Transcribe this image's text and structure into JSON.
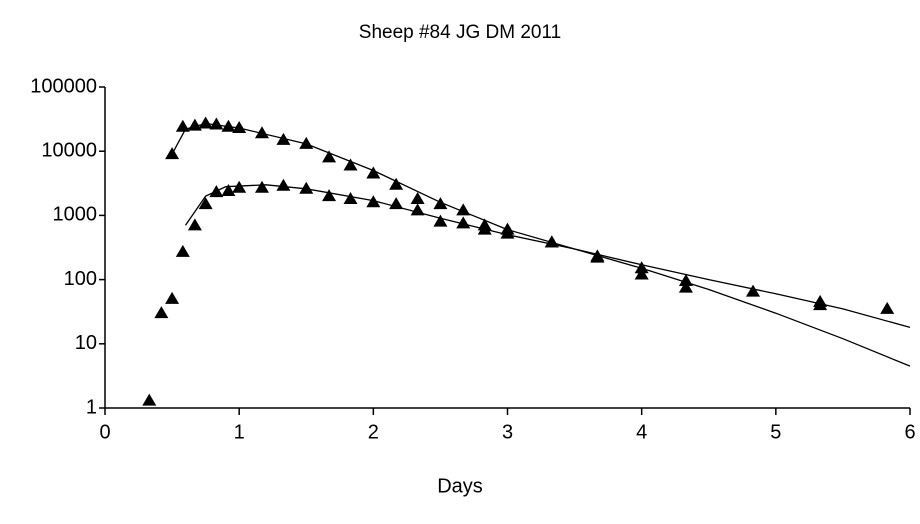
{
  "chart_data": {
    "type": "scatter",
    "title": "Sheep #84 JG DM 2011",
    "x_label": "Days",
    "xlim": [
      0,
      6
    ],
    "xticks": [
      0,
      1,
      2,
      3,
      4,
      5,
      6
    ],
    "ylim": [
      1,
      100000
    ],
    "yticks": [
      1,
      10,
      100,
      1000,
      10000,
      100000
    ],
    "y_log": true,
    "color": "#000000",
    "series": [
      {
        "style": "marker",
        "x": [
          0.5,
          0.58,
          0.67,
          0.75,
          0.83,
          0.92,
          1.0,
          1.17,
          1.33,
          1.5,
          1.67,
          1.83,
          2.0,
          2.17,
          2.33,
          2.5,
          2.67,
          2.83,
          3.0,
          3.33,
          3.67,
          4.0,
          4.33,
          4.83,
          5.33,
          5.83
        ],
        "values": [
          9000,
          24000,
          25000,
          27000,
          26000,
          24000,
          23000,
          19000,
          15000,
          13000,
          8000,
          6000,
          4500,
          3000,
          1800,
          1500,
          1200,
          700,
          600,
          380,
          230,
          150,
          95,
          65,
          45,
          35
        ]
      },
      {
        "style": "marker",
        "x": [
          0.33,
          0.42,
          0.5,
          0.58,
          0.67,
          0.75,
          0.83,
          0.92,
          1.0,
          1.17,
          1.33,
          1.5,
          1.67,
          1.83,
          2.0,
          2.17,
          2.33,
          2.5,
          2.67,
          2.83,
          3.0,
          3.33,
          3.67,
          4.0,
          4.33,
          5.33
        ],
        "values": [
          1.3,
          30,
          50,
          270,
          700,
          1500,
          2300,
          2400,
          2700,
          2700,
          2900,
          2600,
          2000,
          1800,
          1600,
          1500,
          1200,
          800,
          750,
          600,
          520,
          380,
          220,
          120,
          75,
          40
        ]
      },
      {
        "style": "line",
        "x": [
          0.5,
          0.6,
          0.75,
          1.0,
          1.5,
          2.0,
          2.5,
          3.0,
          3.5,
          4.0,
          4.5,
          5.0,
          5.5,
          6.0
        ],
        "values": [
          9000,
          22000,
          27000,
          23000,
          13000,
          5000,
          1600,
          600,
          300,
          150,
          70,
          30,
          12,
          4.5
        ]
      },
      {
        "style": "line",
        "x": [
          0.6,
          0.75,
          0.9,
          1.2,
          1.5,
          2.0,
          2.5,
          3.0,
          3.5,
          4.0,
          4.5,
          5.0,
          5.5,
          6.0
        ],
        "values": [
          700,
          2000,
          2800,
          3000,
          2600,
          1700,
          900,
          500,
          300,
          170,
          100,
          60,
          35,
          18
        ]
      }
    ]
  }
}
